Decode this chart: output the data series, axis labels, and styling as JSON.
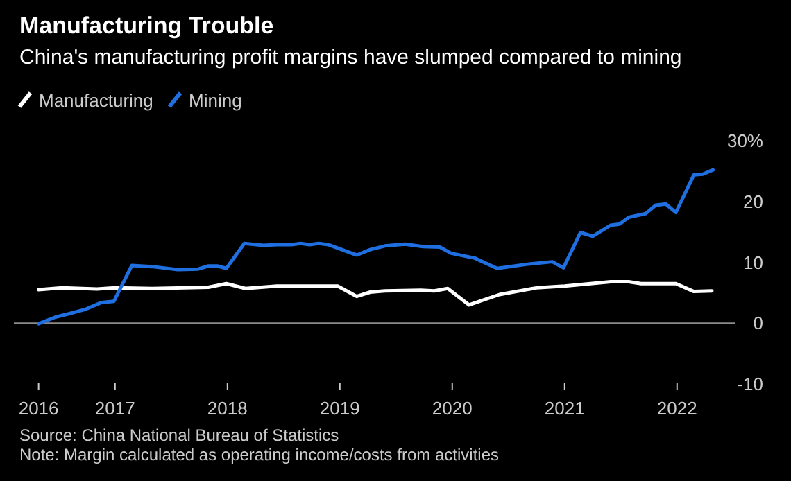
{
  "chart_data": {
    "type": "line",
    "title": "Manufacturing Trouble",
    "subtitle": "China's manufacturing profit margins have slumped compared to mining",
    "series": [
      {
        "name": "Manufacturing",
        "color": "#ffffff",
        "x": [
          2016.32,
          2016.53,
          2016.84,
          2017.0,
          2017.33,
          2017.83,
          2017.99,
          2018.16,
          2018.44,
          2018.98,
          2019.15,
          2019.27,
          2019.4,
          2019.72,
          2019.84,
          2019.96,
          2020.15,
          2020.42,
          2020.75,
          2021.0,
          2021.41,
          2021.57,
          2021.68,
          2021.99,
          2022.15,
          2022.31
        ],
        "values": [
          5.5,
          5.8,
          5.6,
          5.8,
          5.7,
          5.9,
          6.5,
          5.7,
          6.1,
          6.1,
          4.4,
          5.1,
          5.3,
          5.4,
          5.3,
          5.7,
          3.0,
          4.7,
          5.8,
          6.1,
          6.8,
          6.8,
          6.5,
          6.5,
          5.2,
          5.3
        ]
      },
      {
        "name": "Mining",
        "color": "#1f6fe0",
        "x": [
          2016.32,
          2016.47,
          2016.6,
          2016.74,
          2016.88,
          2016.99,
          2017.15,
          2017.33,
          2017.56,
          2017.74,
          2017.83,
          2017.91,
          2017.99,
          2018.15,
          2018.32,
          2018.44,
          2018.57,
          2018.65,
          2018.73,
          2018.81,
          2018.9,
          2019.15,
          2019.27,
          2019.4,
          2019.58,
          2019.74,
          2019.89,
          2019.99,
          2020.2,
          2020.4,
          2020.67,
          2020.89,
          2020.99,
          2021.14,
          2021.25,
          2021.41,
          2021.49,
          2021.57,
          2021.72,
          2021.81,
          2021.9,
          2021.99,
          2022.15,
          2022.23,
          2022.32
        ],
        "values": [
          -0.1,
          1.0,
          1.6,
          2.3,
          3.4,
          3.6,
          9.5,
          9.3,
          8.8,
          8.9,
          9.4,
          9.4,
          9.0,
          13.1,
          12.8,
          12.9,
          12.9,
          13.1,
          12.9,
          13.1,
          12.9,
          11.2,
          12.1,
          12.7,
          13.0,
          12.6,
          12.5,
          11.5,
          10.7,
          9.0,
          9.7,
          10.1,
          9.1,
          14.9,
          14.3,
          16.1,
          16.3,
          17.4,
          18.0,
          19.4,
          19.6,
          18.2,
          24.4,
          24.5,
          25.2
        ]
      }
    ],
    "xlim": [
      2016.1,
      2022.52
    ],
    "xticks": [
      {
        "value": 2016.32,
        "label": "2016"
      },
      2017,
      2018,
      2019,
      2020,
      2021,
      2022
    ],
    "ylim": [
      -10,
      30
    ],
    "yticks": [
      -10,
      0,
      10,
      20,
      {
        "value": 30,
        "label": "30%"
      }
    ],
    "ref_lines": [
      {
        "axis": "y",
        "value": 0,
        "color": "#8c8c8c"
      }
    ],
    "grid": false,
    "legend": "top left",
    "line_style": "solid",
    "marker": "none",
    "annotations": [
      "Source: China National Bureau of Statistics",
      "Note: Margin calculated as operating income/costs from activities"
    ]
  }
}
